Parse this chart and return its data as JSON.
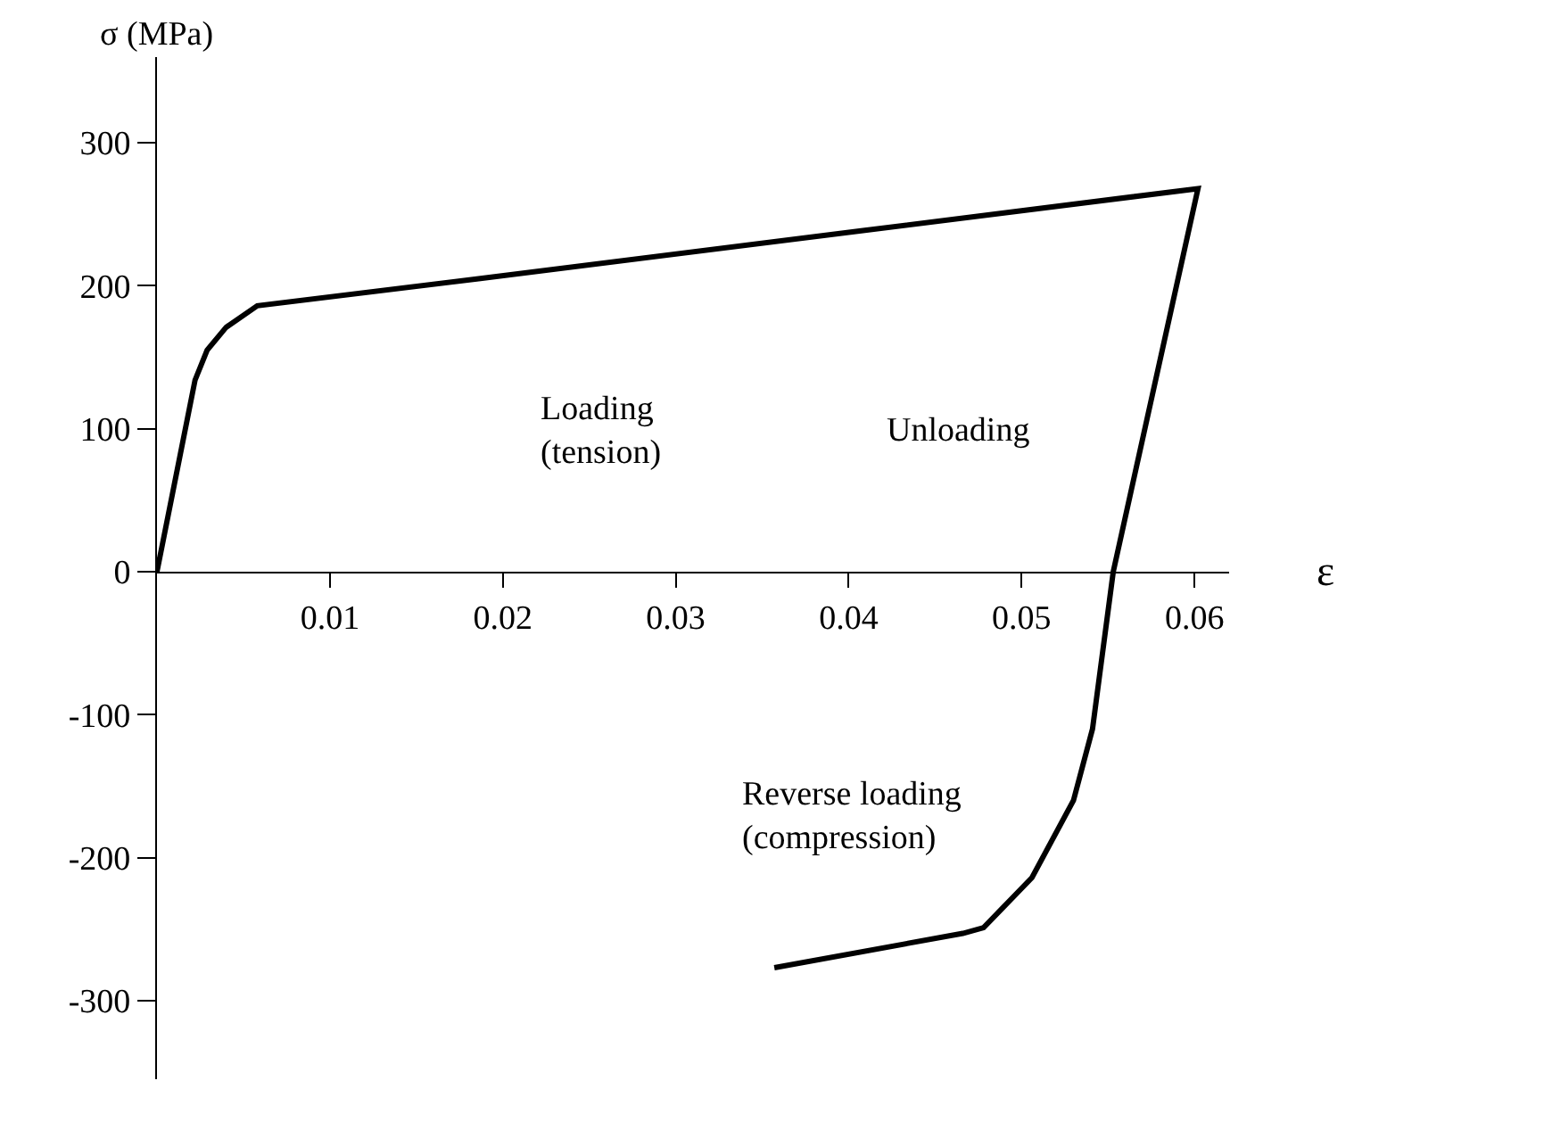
{
  "chart_data": {
    "type": "line",
    "xlabel": "ε",
    "ylabel": "σ (MPa)",
    "x": [
      0,
      0.0022,
      0.0029,
      0.004,
      0.0058,
      0.0186,
      0.0602,
      0.0553,
      0.0541,
      0.053,
      0.0506,
      0.0478,
      0.0466,
      0.0357
    ],
    "series": [
      {
        "color": "#000000",
        "values": [
          0,
          134,
          155,
          171,
          186,
          205,
          268,
          0,
          -110,
          -160,
          -214,
          -249,
          -253,
          -277
        ]
      }
    ],
    "xlim": [
      0,
      0.062
    ],
    "xticks": [
      0.01,
      0.02,
      0.03,
      0.04,
      0.05,
      0.06
    ],
    "ylim": [
      -355,
      360
    ],
    "yticks": [
      {
        "value": -300,
        "label": "-300"
      },
      {
        "value": -200,
        "label": "-200"
      },
      {
        "value": -100,
        "label": "-100"
      },
      0,
      100,
      200,
      300
    ],
    "marker": "none",
    "line_style": "solid",
    "annotations": [
      "Loading\n(tension)",
      "Unloading",
      "Reverse loading\n(compression)"
    ]
  }
}
